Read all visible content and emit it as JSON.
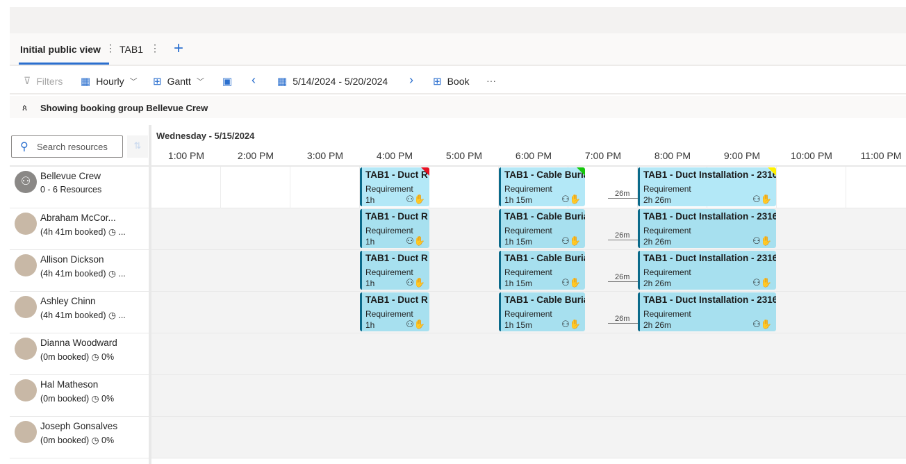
{
  "tabs": [
    {
      "label": "Initial public view",
      "active": true
    },
    {
      "label": "TAB1",
      "active": false
    }
  ],
  "toolbar": {
    "filters": "Filters",
    "hourly": "Hourly",
    "gantt": "Gantt",
    "date_range": "5/14/2024 - 5/20/2024",
    "book": "Book",
    "more": "···"
  },
  "banner": "Showing booking group Bellevue Crew",
  "search": {
    "placeholder": "Search resources"
  },
  "day_header": "Wednesday - 5/15/2024",
  "hours": [
    "1:00 PM",
    "2:00 PM",
    "3:00 PM",
    "4:00 PM",
    "5:00 PM",
    "6:00 PM",
    "7:00 PM",
    "8:00 PM",
    "9:00 PM",
    "10:00 PM",
    "11:00 PM"
  ],
  "colors": {
    "accent": "#2b6fce",
    "booking": "#a7e0ef",
    "booking_border": "#0b6a8a",
    "flags": [
      "#e81123",
      "#16c60c",
      "#fff100"
    ]
  },
  "resources": [
    {
      "name": "Bellevue Crew",
      "status": "0 - 6 Resources",
      "group": true,
      "bookings": true
    },
    {
      "name": "Abraham McCor...",
      "status": "(4h 41m booked) ◷ ...",
      "bookings": true
    },
    {
      "name": "Allison Dickson",
      "status": "(4h 41m booked) ◷ ...",
      "bookings": true
    },
    {
      "name": "Ashley Chinn",
      "status": "(4h 41m booked) ◷ ...",
      "bookings": true
    },
    {
      "name": "Dianna Woodward",
      "status": "(0m booked) ◷  0%",
      "bookings": false
    },
    {
      "name": "Hal Matheson",
      "status": "(0m booked) ◷  0%",
      "bookings": false
    },
    {
      "name": "Joseph Gonsalves",
      "status": "(0m booked) ◷  0%",
      "bookings": false
    }
  ],
  "bookings": [
    {
      "title": "TAB1 - Duct R",
      "type": "Requirement",
      "duration": "1h",
      "start": "4:00 PM"
    },
    {
      "title": "TAB1 - Cable Buria",
      "type": "Requirement",
      "duration": "1h 15m",
      "start": "6:00 PM"
    },
    {
      "title": "TAB1 - Duct Installation - 2316",
      "type": "Requirement",
      "duration": "2h 26m",
      "start": "8:00 PM"
    }
  ],
  "travel_gap": "26m"
}
